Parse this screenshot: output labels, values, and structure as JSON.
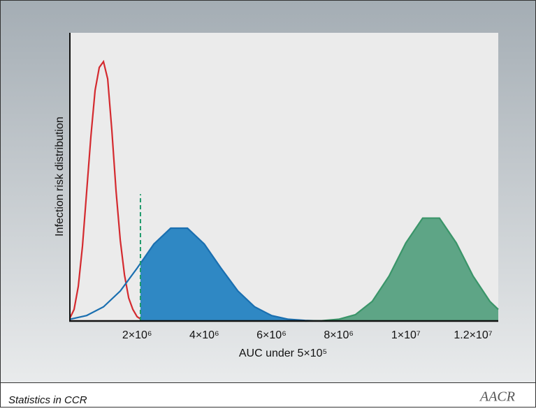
{
  "chart_data": {
    "type": "line",
    "x_label": "AUC under 5×10⁵",
    "y_label": "Infection risk distribution",
    "xlim": [
      0,
      12750000
    ],
    "ylim": [
      0,
      1
    ],
    "xticks": [
      {
        "value": 2000000,
        "label": "2×10⁶"
      },
      {
        "value": 4000000,
        "label": "4×10⁶"
      },
      {
        "value": 6000000,
        "label": "6×10⁶"
      },
      {
        "value": 8000000,
        "label": "8×10⁶"
      },
      {
        "value": 10000000,
        "label": "1×10⁷"
      },
      {
        "value": 12000000,
        "label": "1.2×10⁷"
      }
    ],
    "threshold": {
      "x": 2100000,
      "height": 0.44,
      "color": "#1f9a6b"
    },
    "series": [
      {
        "color": "#d42a2f",
        "filled": false,
        "x": [
          0,
          125000,
          250000,
          375000,
          500000,
          625000,
          750000,
          875000,
          1000000,
          1125000,
          1250000,
          1375000,
          1500000,
          1625000,
          1750000,
          1875000,
          2000000,
          2125000,
          2250000
        ],
        "values": [
          0.01,
          0.04,
          0.12,
          0.26,
          0.45,
          0.64,
          0.8,
          0.88,
          0.9,
          0.84,
          0.66,
          0.45,
          0.28,
          0.16,
          0.08,
          0.04,
          0.015,
          0.005,
          0
        ]
      },
      {
        "color": "#1a6fb0",
        "fill": "#2f88c4",
        "filled": true,
        "fill_from": 2100000,
        "x": [
          0,
          500000,
          1000000,
          1500000,
          2000000,
          2500000,
          3000000,
          3500000,
          4000000,
          4500000,
          5000000,
          5500000,
          6000000,
          6500000,
          7000000,
          7500000
        ],
        "values": [
          0.006,
          0.019,
          0.049,
          0.104,
          0.183,
          0.267,
          0.322,
          0.322,
          0.267,
          0.183,
          0.104,
          0.049,
          0.019,
          0.006,
          0.002,
          0
        ]
      },
      {
        "color": "#3a9569",
        "fill": "#5ea586",
        "filled": true,
        "fill_from": 7000000,
        "x": [
          7000000,
          7500000,
          8000000,
          8500000,
          9000000,
          9500000,
          10000000,
          10500000,
          11000000,
          11500000,
          12000000,
          12500000,
          12750000
        ],
        "values": [
          0,
          0.001,
          0.006,
          0.022,
          0.068,
          0.156,
          0.271,
          0.357,
          0.357,
          0.271,
          0.156,
          0.068,
          0.04
        ]
      }
    ]
  },
  "footer": {
    "text": "Statistics in CCR",
    "logo": "AACR"
  }
}
